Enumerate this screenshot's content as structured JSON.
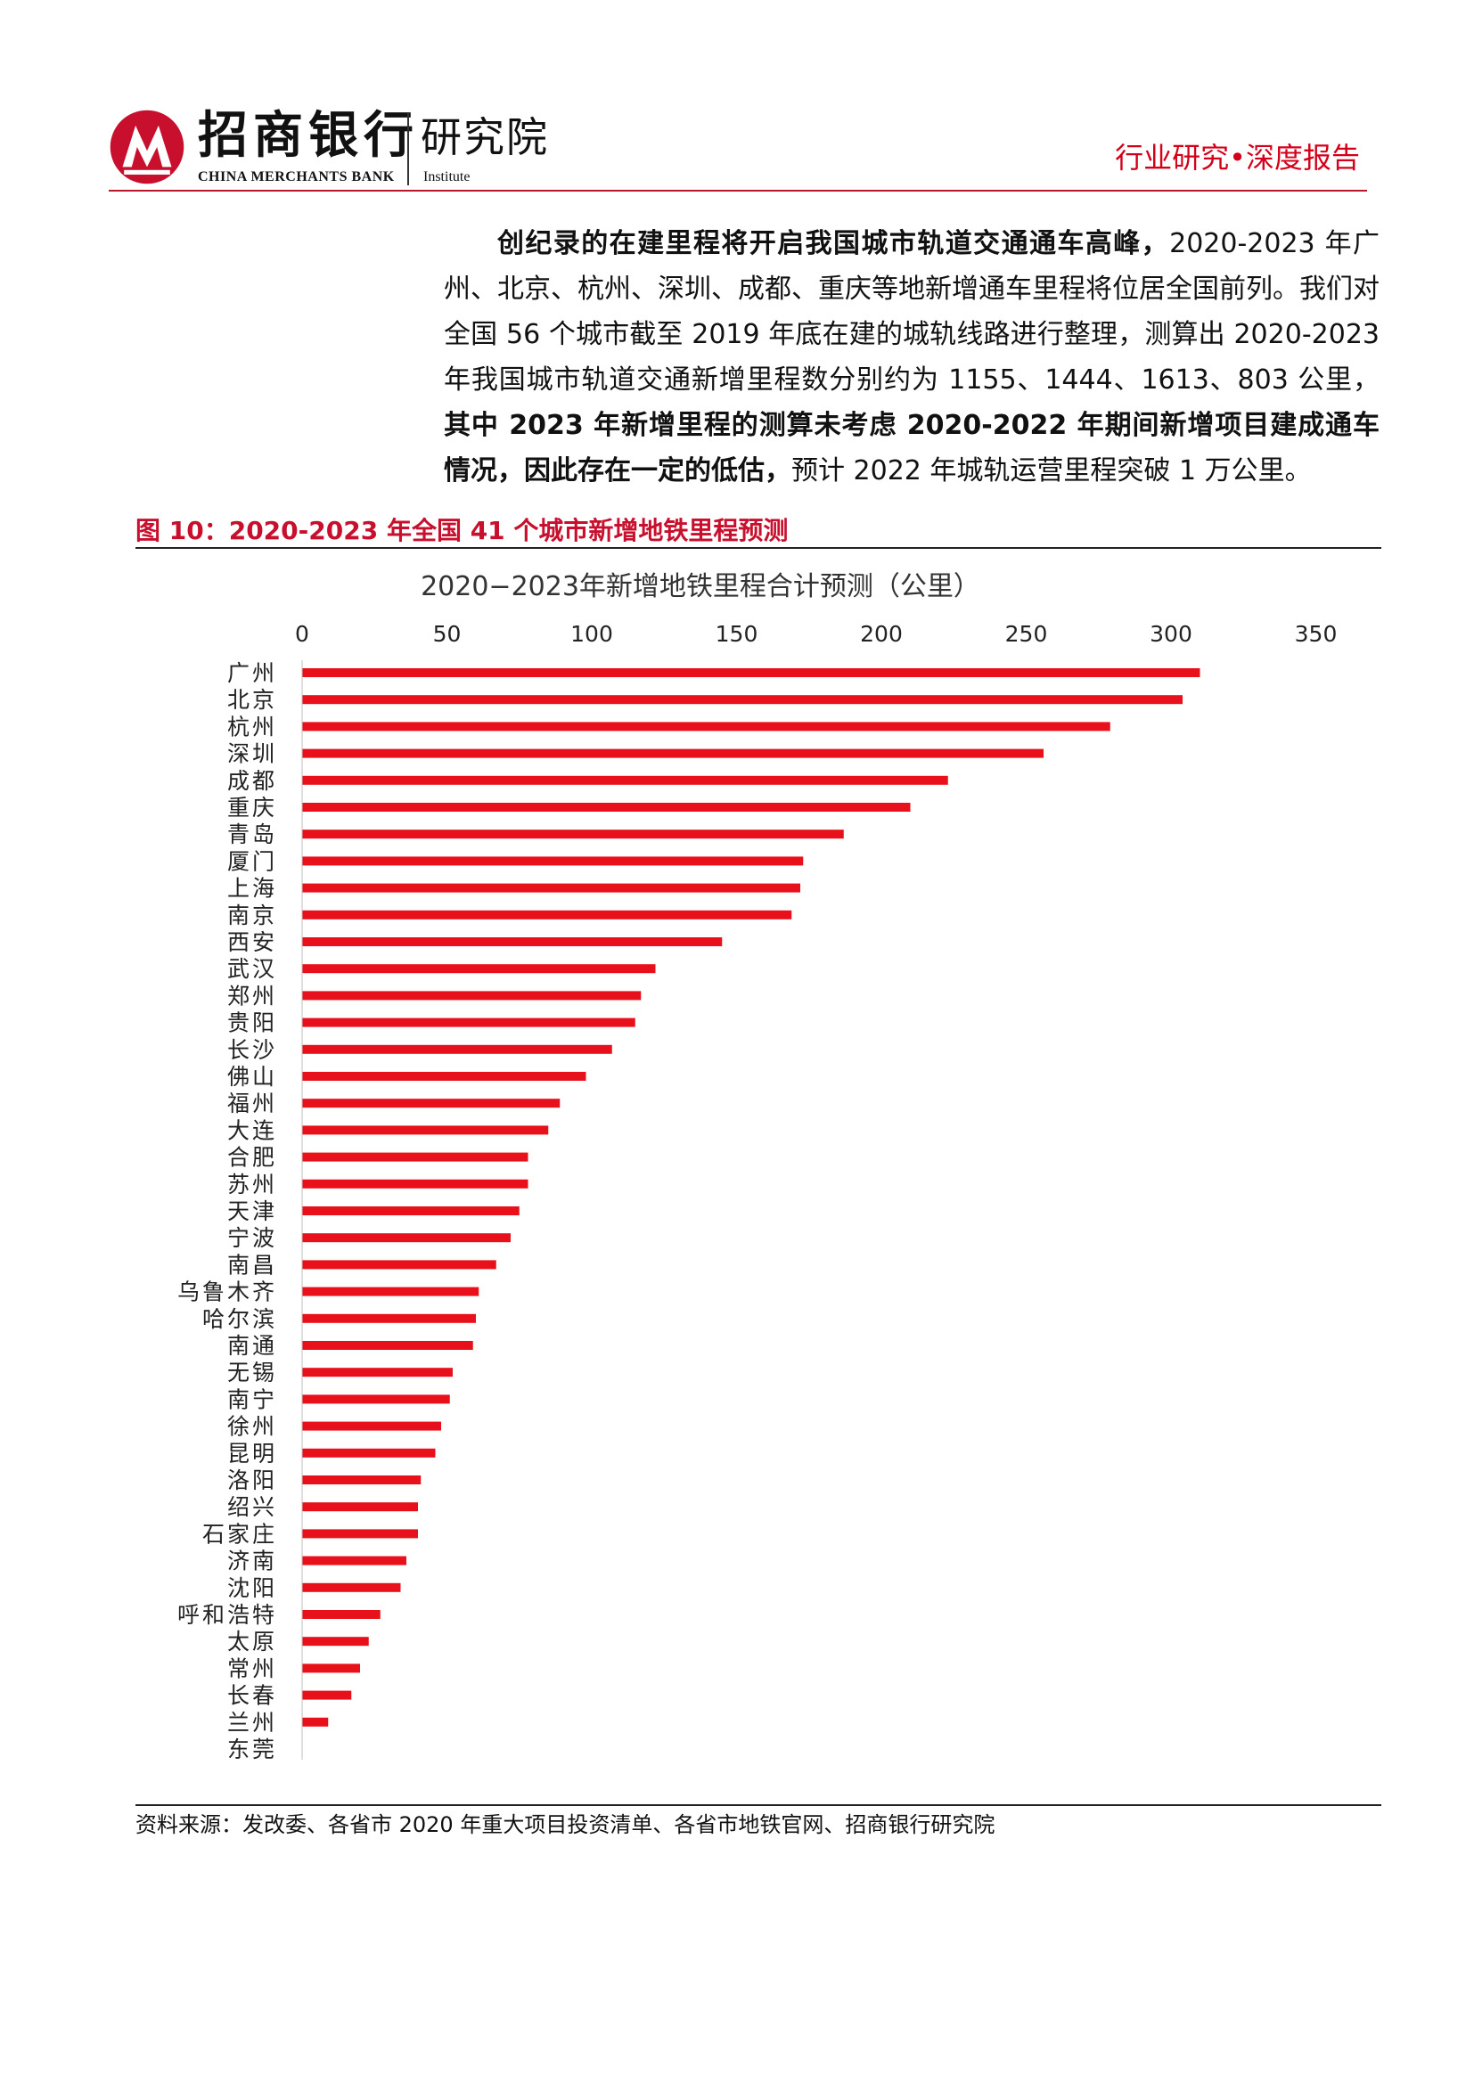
{
  "header": {
    "brand_cn": "招商银行",
    "brand_en": "CHINA MERCHANTS BANK",
    "institute_cn": "研究院",
    "institute_en": "Institute",
    "report_type": "行业研究•深度报告",
    "accent_color": "#c8102e"
  },
  "body": {
    "segments": [
      {
        "text": "创纪录的在建里程将开启我国城市轨道交通通车高峰，",
        "bold": true
      },
      {
        "text": "2020-2023 年广州、北京、杭州、深圳、成都、重庆等地新增通车里程将位居全国前列。我们对全国 56 个城市截至 2019 年底在建的城轨线路进行整理，测算出 2020-2023 年我国城市轨道交通新增里程数分别约为 1155、1444、1613、803 公里，",
        "bold": false
      },
      {
        "text": "其中 2023 年新增里程的测算未考虑 2020-2022 年期间新增项目建成通车情况，因此存在一定的低估，",
        "bold": true
      },
      {
        "text": "预计 2022 年城轨运营里程突破 1 万公里。",
        "bold": false
      }
    ]
  },
  "figure": {
    "title": "图 10：2020-2023 年全国 41 个城市新增地铁里程预测",
    "source": "资料来源：发改委、各省市 2020 年重大项目投资清单、各省市地铁官网、招商银行研究院"
  },
  "chart_data": {
    "type": "bar",
    "orientation": "horizontal",
    "title": "2020−2023年新增地铁里程合计预测（公里）",
    "xlim": [
      0,
      350
    ],
    "xticks": [
      0,
      50,
      100,
      150,
      200,
      250,
      300,
      350
    ],
    "xaxis_position": "top",
    "grid": false,
    "bar_color": "#e8101a",
    "categories": [
      "广州",
      "北京",
      "杭州",
      "深圳",
      "成都",
      "重庆",
      "青岛",
      "厦门",
      "上海",
      "南京",
      "西安",
      "武汉",
      "郑州",
      "贵阳",
      "长沙",
      "佛山",
      "福州",
      "大连",
      "合肥",
      "苏州",
      "天津",
      "宁波",
      "南昌",
      "乌鲁木齐",
      "哈尔滨",
      "南通",
      "无锡",
      "南宁",
      "徐州",
      "昆明",
      "洛阳",
      "绍兴",
      "石家庄",
      "济南",
      "沈阳",
      "呼和浩特",
      "太原",
      "常州",
      "长春",
      "兰州",
      "东莞"
    ],
    "values": [
      310,
      304,
      279,
      256,
      223,
      210,
      187,
      173,
      172,
      169,
      145,
      122,
      117,
      115,
      107,
      98,
      89,
      85,
      78,
      78,
      75,
      72,
      67,
      61,
      60,
      59,
      52,
      51,
      48,
      46,
      41,
      40,
      40,
      36,
      34,
      27,
      23,
      20,
      17,
      9,
      0
    ]
  }
}
